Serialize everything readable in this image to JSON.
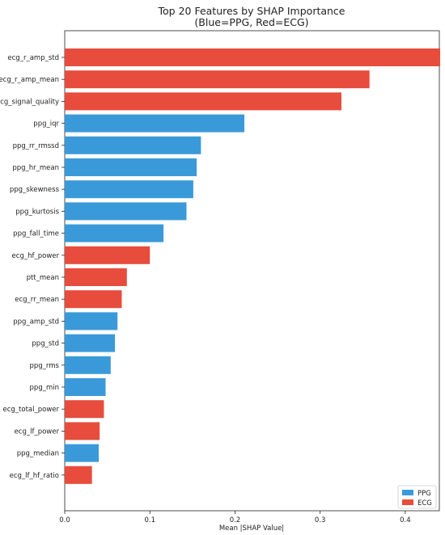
{
  "chart_data": {
    "type": "bar",
    "orientation": "horizontal",
    "title": "Top 20 Features by SHAP Importance",
    "subtitle": "(Blue=PPG, Red=ECG)",
    "xlabel": "Mean |SHAP Value|",
    "ylabel": "",
    "xlim": [
      0,
      0.44
    ],
    "xticks": [
      "0.0",
      "0.1",
      "0.2",
      "0.3",
      "0.4"
    ],
    "xtick_values": [
      0,
      0.1,
      0.2,
      0.3,
      0.4
    ],
    "grid": false,
    "legend": {
      "position": "bottom-right",
      "entries": [
        {
          "name": "PPG",
          "color": "#3a9ad9"
        },
        {
          "name": "ECG",
          "color": "#e74c3c"
        }
      ]
    },
    "colors": {
      "PPG": "#3a9ad9",
      "ECG": "#e74c3c"
    },
    "categories": [
      "ecg_r_amp_std",
      "ecg_r_amp_mean",
      "ecg_signal_quality",
      "ppg_iqr",
      "ppg_rr_rmssd",
      "ppg_hr_mean",
      "ppg_skewness",
      "ppg_kurtosis",
      "ppg_fall_time",
      "ecg_hf_power",
      "ptt_mean",
      "ecg_rr_mean",
      "ppg_amp_std",
      "ppg_std",
      "ppg_rms",
      "ppg_min",
      "ecg_total_power",
      "ecg_lf_power",
      "ppg_median",
      "ecg_lf_hf_ratio"
    ],
    "values": [
      0.441,
      0.358,
      0.325,
      0.211,
      0.16,
      0.155,
      0.151,
      0.143,
      0.116,
      0.1,
      0.073,
      0.067,
      0.062,
      0.059,
      0.054,
      0.048,
      0.046,
      0.041,
      0.04,
      0.032
    ],
    "groups": [
      "ECG",
      "ECG",
      "ECG",
      "PPG",
      "PPG",
      "PPG",
      "PPG",
      "PPG",
      "PPG",
      "ECG",
      "ECG",
      "ECG",
      "PPG",
      "PPG",
      "PPG",
      "PPG",
      "ECG",
      "ECG",
      "PPG",
      "ECG"
    ]
  }
}
